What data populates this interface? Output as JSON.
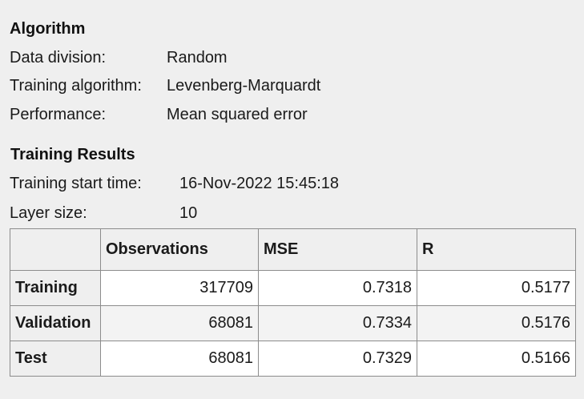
{
  "algorithm": {
    "title": "Algorithm",
    "rows": [
      {
        "key": "Data division:",
        "value": "Random"
      },
      {
        "key": "Training algorithm:",
        "value": "Levenberg-Marquardt"
      },
      {
        "key": "Performance:",
        "value": "Mean squared error"
      }
    ]
  },
  "training_results": {
    "title": "Training Results",
    "rows": [
      {
        "key": "Training start time:",
        "value": "16-Nov-2022 15:45:18"
      },
      {
        "key": "Layer size:",
        "value": "10"
      }
    ],
    "table": {
      "headers": [
        "",
        "Observations",
        "MSE",
        "R"
      ],
      "rows": [
        {
          "label": "Training",
          "observations": "317709",
          "mse": "0.7318",
          "r": "0.5177"
        },
        {
          "label": "Validation",
          "observations": "68081",
          "mse": "0.7334",
          "r": "0.5176"
        },
        {
          "label": "Test",
          "observations": "68081",
          "mse": "0.7329",
          "r": "0.5166"
        }
      ]
    }
  }
}
